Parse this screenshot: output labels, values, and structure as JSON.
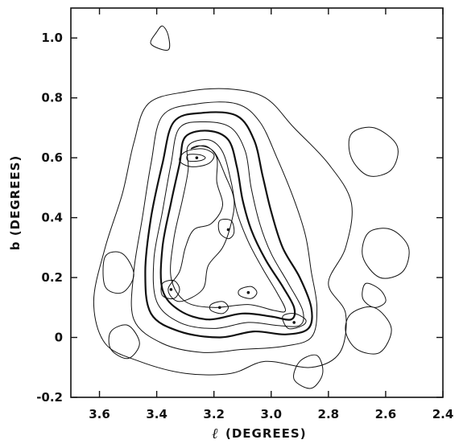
{
  "chart_data": {
    "type": "contour",
    "title": "",
    "xlabel": "(DEGREES)",
    "xlabel_symbol": "ℓ",
    "ylabel": "b (DEGREES)",
    "xlim": [
      3.7,
      2.4
    ],
    "ylim": [
      -0.2,
      1.1
    ],
    "x_ticks": [
      "3.6",
      "3.4",
      "3.2",
      "3.0",
      "2.8",
      "2.6",
      "2.4"
    ],
    "x_tick_values": [
      3.6,
      3.4,
      3.2,
      3.0,
      2.8,
      2.6,
      2.4
    ],
    "y_ticks": [
      "1.0",
      "0.8",
      "0.6",
      "0.4",
      "0.2",
      "0",
      "-0.2"
    ],
    "y_tick_values": [
      1.0,
      0.8,
      0.6,
      0.4,
      0.2,
      0.0,
      -0.2
    ],
    "x_reversed": true,
    "grid": false,
    "peaks": [
      {
        "l": 3.26,
        "b": 0.6
      },
      {
        "l": 3.35,
        "b": 0.16
      },
      {
        "l": 3.15,
        "b": 0.36
      },
      {
        "l": 2.92,
        "b": 0.05
      },
      {
        "l": 3.08,
        "b": 0.15
      },
      {
        "l": 3.18,
        "b": 0.1
      }
    ],
    "contours": [
      {
        "level": 1,
        "style": "thin",
        "points": [
          [
            3.43,
            0.78
          ],
          [
            3.3,
            0.82
          ],
          [
            3.15,
            0.83
          ],
          [
            3.02,
            0.8
          ],
          [
            2.92,
            0.7
          ],
          [
            2.8,
            0.58
          ],
          [
            2.72,
            0.45
          ],
          [
            2.74,
            0.3
          ],
          [
            2.8,
            0.18
          ],
          [
            2.74,
            0.08
          ],
          [
            2.76,
            -0.05
          ],
          [
            2.86,
            -0.1
          ],
          [
            3.02,
            -0.08
          ],
          [
            3.14,
            -0.12
          ],
          [
            3.3,
            -0.12
          ],
          [
            3.46,
            -0.08
          ],
          [
            3.58,
            -0.02
          ],
          [
            3.62,
            0.12
          ],
          [
            3.58,
            0.3
          ],
          [
            3.52,
            0.48
          ],
          [
            3.48,
            0.65
          ]
        ]
      },
      {
        "level": 2,
        "style": "thin",
        "points": [
          [
            3.38,
            0.74
          ],
          [
            3.26,
            0.78
          ],
          [
            3.12,
            0.78
          ],
          [
            3.04,
            0.72
          ],
          [
            2.98,
            0.6
          ],
          [
            2.92,
            0.46
          ],
          [
            2.88,
            0.34
          ],
          [
            2.86,
            0.22
          ],
          [
            2.84,
            0.1
          ],
          [
            2.86,
            0.0
          ],
          [
            2.96,
            -0.03
          ],
          [
            3.1,
            -0.04
          ],
          [
            3.24,
            -0.05
          ],
          [
            3.38,
            -0.02
          ],
          [
            3.48,
            0.06
          ],
          [
            3.48,
            0.22
          ],
          [
            3.45,
            0.4
          ],
          [
            3.42,
            0.58
          ]
        ]
      },
      {
        "level": 3,
        "style": "thick",
        "points": [
          [
            3.34,
            0.72
          ],
          [
            3.24,
            0.75
          ],
          [
            3.12,
            0.74
          ],
          [
            3.06,
            0.66
          ],
          [
            3.03,
            0.54
          ],
          [
            3.0,
            0.42
          ],
          [
            2.96,
            0.3
          ],
          [
            2.9,
            0.2
          ],
          [
            2.86,
            0.1
          ],
          [
            2.87,
            0.03
          ],
          [
            2.95,
            0.01
          ],
          [
            3.06,
            0.02
          ],
          [
            3.18,
            0.0
          ],
          [
            3.32,
            0.02
          ],
          [
            3.42,
            0.08
          ],
          [
            3.44,
            0.22
          ],
          [
            3.42,
            0.4
          ],
          [
            3.38,
            0.58
          ]
        ]
      },
      {
        "level": 4,
        "style": "thin",
        "points": [
          [
            3.32,
            0.7
          ],
          [
            3.23,
            0.72
          ],
          [
            3.14,
            0.7
          ],
          [
            3.09,
            0.62
          ],
          [
            3.07,
            0.5
          ],
          [
            3.04,
            0.38
          ],
          [
            3.0,
            0.28
          ],
          [
            2.94,
            0.18
          ],
          [
            2.89,
            0.09
          ],
          [
            2.9,
            0.04
          ],
          [
            2.98,
            0.04
          ],
          [
            3.08,
            0.05
          ],
          [
            3.2,
            0.03
          ],
          [
            3.32,
            0.05
          ],
          [
            3.4,
            0.12
          ],
          [
            3.41,
            0.26
          ],
          [
            3.38,
            0.42
          ],
          [
            3.35,
            0.58
          ]
        ]
      },
      {
        "level": 5,
        "style": "thick",
        "points": [
          [
            3.3,
            0.67
          ],
          [
            3.22,
            0.69
          ],
          [
            3.15,
            0.66
          ],
          [
            3.12,
            0.57
          ],
          [
            3.1,
            0.46
          ],
          [
            3.07,
            0.36
          ],
          [
            3.02,
            0.26
          ],
          [
            2.96,
            0.17
          ],
          [
            2.92,
            0.1
          ],
          [
            2.93,
            0.06
          ],
          [
            3.0,
            0.07
          ],
          [
            3.1,
            0.08
          ],
          [
            3.22,
            0.06
          ],
          [
            3.32,
            0.09
          ],
          [
            3.38,
            0.16
          ],
          [
            3.38,
            0.3
          ],
          [
            3.35,
            0.45
          ],
          [
            3.32,
            0.58
          ]
        ]
      },
      {
        "level": 6,
        "style": "thin",
        "points": [
          [
            3.29,
            0.64
          ],
          [
            3.22,
            0.66
          ],
          [
            3.17,
            0.62
          ],
          [
            3.14,
            0.52
          ],
          [
            3.12,
            0.42
          ],
          [
            3.08,
            0.32
          ],
          [
            3.03,
            0.23
          ],
          [
            2.98,
            0.15
          ],
          [
            2.95,
            0.09
          ],
          [
            2.99,
            0.09
          ],
          [
            3.08,
            0.11
          ],
          [
            3.2,
            0.1
          ],
          [
            3.3,
            0.12
          ],
          [
            3.35,
            0.2
          ],
          [
            3.34,
            0.33
          ],
          [
            3.31,
            0.46
          ],
          [
            3.29,
            0.56
          ]
        ]
      },
      {
        "level": 7,
        "style": "thin",
        "points": [
          [
            3.28,
            0.63
          ],
          [
            3.23,
            0.64
          ],
          [
            3.19,
            0.6
          ],
          [
            3.19,
            0.52
          ],
          [
            3.17,
            0.44
          ],
          [
            3.21,
            0.38
          ],
          [
            3.27,
            0.36
          ],
          [
            3.3,
            0.3
          ],
          [
            3.32,
            0.22
          ],
          [
            3.36,
            0.16
          ],
          [
            3.32,
            0.12
          ],
          [
            3.24,
            0.16
          ],
          [
            3.22,
            0.24
          ],
          [
            3.17,
            0.3
          ],
          [
            3.14,
            0.38
          ],
          [
            3.13,
            0.46
          ],
          [
            3.16,
            0.54
          ],
          [
            3.2,
            0.62
          ],
          [
            3.25,
            0.64
          ]
        ]
      },
      {
        "level": 8,
        "style": "thin",
        "points": [
          [
            3.3,
            0.62
          ],
          [
            3.24,
            0.63
          ],
          [
            3.2,
            0.61
          ],
          [
            3.22,
            0.58
          ],
          [
            3.28,
            0.57
          ],
          [
            3.32,
            0.59
          ]
        ]
      },
      {
        "level": 9,
        "style": "thin",
        "points": [
          [
            3.29,
            0.61
          ],
          [
            3.25,
            0.61
          ],
          [
            3.23,
            0.6
          ],
          [
            3.25,
            0.59
          ],
          [
            3.29,
            0.59
          ]
        ]
      },
      {
        "level": 8,
        "style": "thin",
        "points": [
          [
            3.38,
            0.18
          ],
          [
            3.34,
            0.19
          ],
          [
            3.32,
            0.16
          ],
          [
            3.34,
            0.13
          ],
          [
            3.38,
            0.14
          ]
        ]
      },
      {
        "level": 8,
        "style": "thin",
        "points": [
          [
            3.18,
            0.39
          ],
          [
            3.14,
            0.39
          ],
          [
            3.13,
            0.35
          ],
          [
            3.15,
            0.33
          ],
          [
            3.18,
            0.35
          ]
        ]
      },
      {
        "level": 8,
        "style": "thin",
        "points": [
          [
            2.96,
            0.07
          ],
          [
            2.92,
            0.08
          ],
          [
            2.88,
            0.06
          ],
          [
            2.89,
            0.04
          ],
          [
            2.94,
            0.03
          ]
        ]
      },
      {
        "level": 8,
        "style": "thin",
        "points": [
          [
            3.11,
            0.16
          ],
          [
            3.07,
            0.17
          ],
          [
            3.05,
            0.15
          ],
          [
            3.07,
            0.13
          ],
          [
            3.11,
            0.14
          ]
        ]
      },
      {
        "level": 8,
        "style": "thin",
        "points": [
          [
            3.21,
            0.11
          ],
          [
            3.17,
            0.12
          ],
          [
            3.15,
            0.1
          ],
          [
            3.17,
            0.08
          ],
          [
            3.21,
            0.09
          ]
        ]
      },
      {
        "level": 1,
        "style": "thin",
        "points": [
          [
            2.72,
            0.68
          ],
          [
            2.64,
            0.7
          ],
          [
            2.56,
            0.64
          ],
          [
            2.58,
            0.56
          ],
          [
            2.66,
            0.54
          ],
          [
            2.72,
            0.6
          ]
        ]
      },
      {
        "level": 1,
        "style": "thin",
        "points": [
          [
            2.66,
            0.35
          ],
          [
            2.58,
            0.36
          ],
          [
            2.52,
            0.3
          ],
          [
            2.54,
            0.22
          ],
          [
            2.62,
            0.2
          ],
          [
            2.68,
            0.27
          ]
        ]
      },
      {
        "level": 1,
        "style": "thin",
        "points": [
          [
            2.72,
            0.08
          ],
          [
            2.64,
            0.1
          ],
          [
            2.58,
            0.03
          ],
          [
            2.62,
            -0.05
          ],
          [
            2.7,
            -0.04
          ],
          [
            2.74,
            0.02
          ]
        ]
      },
      {
        "level": 1,
        "style": "thin",
        "points": [
          [
            3.58,
            0.27
          ],
          [
            3.52,
            0.28
          ],
          [
            3.48,
            0.21
          ],
          [
            3.52,
            0.15
          ],
          [
            3.58,
            0.17
          ]
        ]
      },
      {
        "level": 1,
        "style": "thin",
        "points": [
          [
            3.56,
            0.02
          ],
          [
            3.5,
            0.04
          ],
          [
            3.46,
            -0.02
          ],
          [
            3.5,
            -0.07
          ],
          [
            3.56,
            -0.04
          ]
        ]
      },
      {
        "level": 1,
        "style": "thin",
        "points": [
          [
            2.9,
            -0.08
          ],
          [
            2.84,
            -0.06
          ],
          [
            2.82,
            -0.12
          ],
          [
            2.86,
            -0.17
          ],
          [
            2.92,
            -0.14
          ]
        ]
      },
      {
        "level": 1,
        "style": "thin",
        "points": [
          [
            3.42,
            0.98
          ],
          [
            3.4,
            1.02
          ],
          [
            3.38,
            1.04
          ],
          [
            3.36,
            1.01
          ],
          [
            3.36,
            0.96
          ]
        ]
      },
      {
        "level": 1,
        "style": "thin",
        "points": [
          [
            2.67,
            0.18
          ],
          [
            2.62,
            0.16
          ],
          [
            2.6,
            0.12
          ],
          [
            2.64,
            0.1
          ],
          [
            2.68,
            0.13
          ]
        ]
      }
    ]
  }
}
